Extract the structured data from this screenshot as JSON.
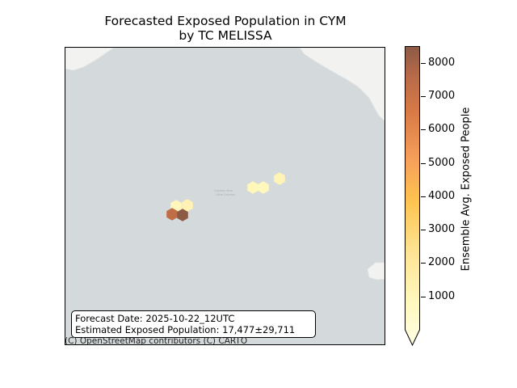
{
  "title": {
    "line1": "Forecasted Exposed Population in CYM",
    "line2": "by TC MELISSA"
  },
  "info": {
    "forecast_date": "Forecast Date: 2025-10-22_12UTC",
    "estimated": "Estimated Exposed Population: 17,477±29,711"
  },
  "attribution": "(C) OpenStreetMap contributors (C) CARTO",
  "colorbar": {
    "label": "Ensemble Avg. Exposed People",
    "ticks": [
      "1000",
      "2000",
      "3000",
      "4000",
      "5000",
      "6000",
      "7000",
      "8000"
    ],
    "min": 0,
    "max": 8500,
    "extend": "min",
    "colormap": [
      "#ffffe5",
      "#fff7bc",
      "#fee391",
      "#fec44f",
      "#f6a05a",
      "#d97a45",
      "#b86a48",
      "#8c5a45"
    ]
  },
  "map": {
    "water_color": "#d4d9db",
    "land_color": "#f2f2f1",
    "place_labels": [
      "Cayman Brac",
      "Little Cayman"
    ],
    "exposure_cells": [
      {
        "name": "hex-west-1",
        "value": 1200
      },
      {
        "name": "hex-west-2",
        "value": 1500
      },
      {
        "name": "hex-west-3",
        "value": 7000
      },
      {
        "name": "hex-west-4",
        "value": 8500
      },
      {
        "name": "hex-east-1",
        "value": 1300
      },
      {
        "name": "hex-east-2",
        "value": 1200
      },
      {
        "name": "hex-east-3",
        "value": 1400
      }
    ]
  }
}
